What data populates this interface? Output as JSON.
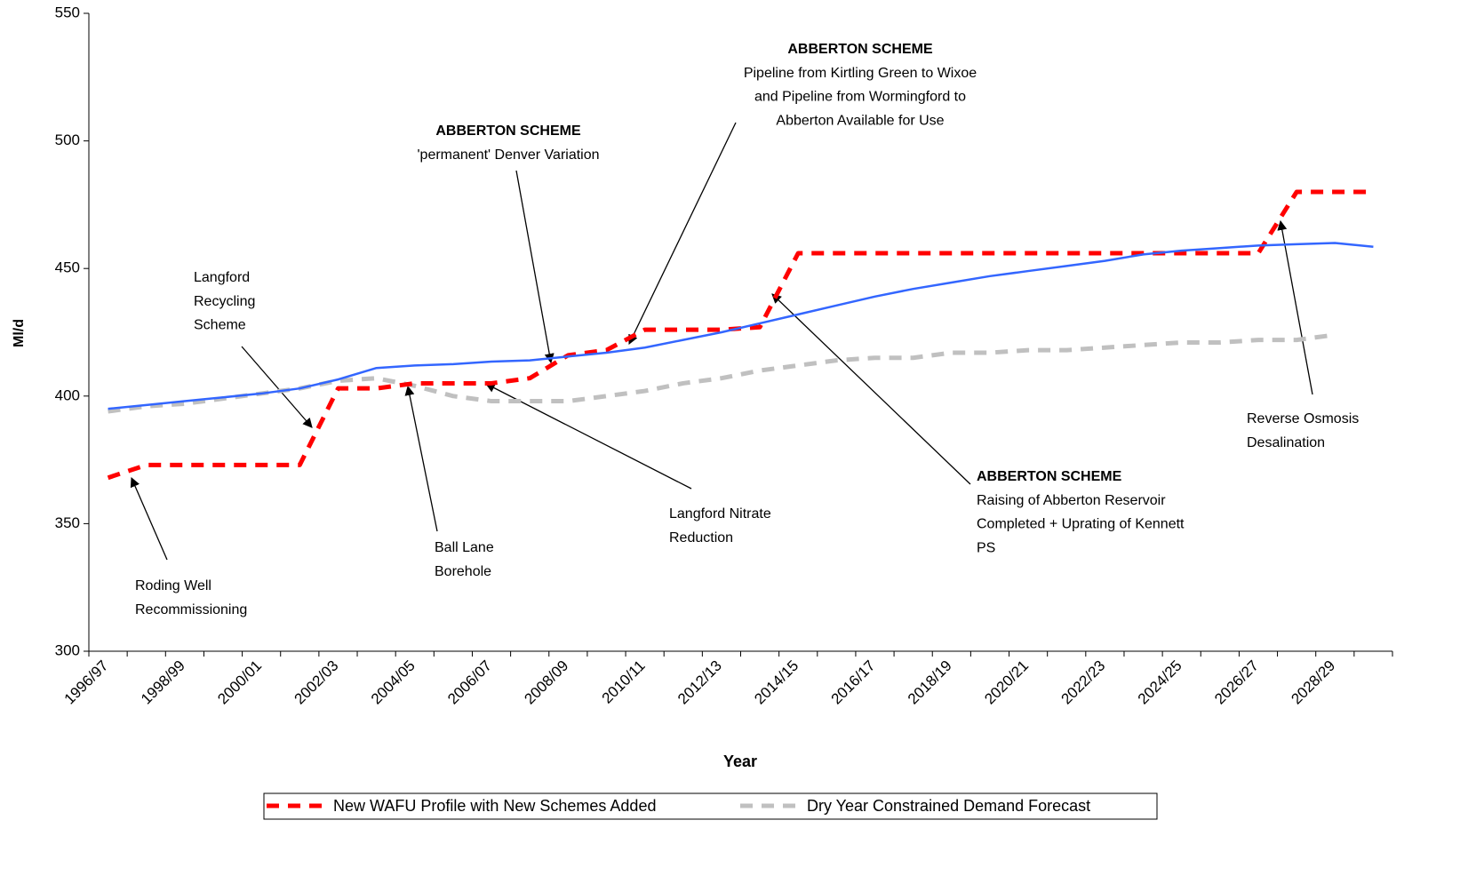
{
  "chart_data": {
    "type": "line",
    "y_label": "Ml/d",
    "x_label": "Year",
    "ylim": [
      300,
      550
    ],
    "yticks": [
      300,
      350,
      400,
      450,
      500,
      550
    ],
    "categories": [
      "1996/97",
      null,
      "1998/99",
      null,
      "2000/01",
      null,
      "2002/03",
      null,
      "2004/05",
      null,
      "2006/07",
      null,
      "2008/09",
      null,
      "2010/11",
      null,
      "2012/13",
      null,
      "2014/15",
      null,
      "2016/17",
      null,
      "2018/19",
      null,
      "2020/21",
      null,
      "2022/23",
      null,
      "2024/25",
      null,
      "2026/27",
      null,
      "2028/29",
      null
    ],
    "series": [
      {
        "name": "New WAFU Profile with New Schemes Added",
        "color": "#ff0000",
        "style": "dashed",
        "values": [
          368,
          373,
          373,
          373,
          373,
          373,
          403,
          403,
          405,
          405,
          405,
          407,
          416,
          418,
          426,
          426,
          426,
          427,
          456,
          456,
          456,
          456,
          456,
          456,
          456,
          456,
          456,
          456,
          456,
          456,
          456,
          480,
          480,
          480
        ]
      },
      {
        "name": "Dry Year Constrained Demand Forecast",
        "color": "#c0c0c0",
        "style": "dashed",
        "values": [
          394,
          396,
          397,
          399,
          401,
          403,
          406,
          407,
          404,
          400,
          398,
          398,
          398,
          400,
          402,
          405,
          407,
          410,
          412,
          414,
          415,
          415,
          417,
          417,
          418,
          418,
          419,
          420,
          421,
          421,
          422,
          422,
          424,
          null
        ]
      },
      {
        "color": "#3366ff",
        "style": "solid",
        "values": [
          395,
          396.5,
          398,
          399.5,
          401,
          403,
          406.5,
          411,
          412,
          412.5,
          413.5,
          414,
          415.5,
          417,
          419,
          422,
          425,
          428.5,
          432,
          435.5,
          439,
          442,
          444.5,
          447,
          449,
          451,
          453,
          455.5,
          457,
          458,
          459,
          459.5,
          460,
          458.5
        ]
      }
    ],
    "legend": "bottom",
    "annotations": [
      {
        "lines": [
          "Roding Well",
          "Recommissioning"
        ]
      },
      {
        "lines": [
          "Langford",
          "Recycling",
          "Scheme"
        ]
      },
      {
        "lines": [
          "Ball Lane",
          "Borehole"
        ]
      },
      {
        "title": "ABBERTON SCHEME",
        "lines": [
          "'permanent' Denver Variation"
        ]
      },
      {
        "title": "ABBERTON SCHEME",
        "lines": [
          "Pipeline from Kirtling Green to Wixoe",
          "and Pipeline from Wormingford to",
          "Abberton Available for Use"
        ]
      },
      {
        "lines": [
          "Langford Nitrate",
          "Reduction"
        ]
      },
      {
        "title": "ABBERTON SCHEME",
        "lines": [
          "Raising of Abberton Reservoir",
          "Completed + Uprating of Kennett",
          "PS"
        ]
      },
      {
        "lines": [
          "Reverse Osmosis",
          "Desalination"
        ]
      }
    ]
  }
}
